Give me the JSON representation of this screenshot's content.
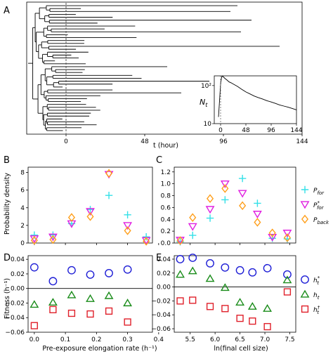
{
  "panels": {
    "A": "A",
    "B": "B",
    "C": "C",
    "D": "D",
    "E": "E"
  },
  "colors": {
    "p_for": "#33e0e8",
    "p_for_star": "#e020e0",
    "p_back": "#ff9f1c",
    "h_star": "#1f1fd6",
    "h_t": "#1a8c1a",
    "h_dagger": "#e0202a",
    "lineage": "#000000"
  },
  "chart_data": [
    {
      "id": "A",
      "type": "line",
      "description_of_marks": "lineage tree (horizontal branch lines), dashed vertical line at t = 0",
      "xlabel": "t (hour)",
      "x_ticks": [
        "0",
        "48",
        "96",
        "144"
      ],
      "xlim": [
        -24,
        144
      ],
      "inset": {
        "type": "line",
        "ylabel": "N_t",
        "y_scale": "log",
        "y_ticks": [
          "10",
          "10²"
        ],
        "x_ticks": [
          "0",
          "48",
          "96",
          "144"
        ],
        "xlim": [
          -12,
          144
        ],
        "ylim": [
          10,
          180
        ],
        "x": [
          -4,
          -2,
          0,
          2,
          4,
          6,
          8,
          12,
          16,
          20,
          24,
          32,
          40,
          48,
          56,
          64,
          72,
          80,
          88,
          96,
          104,
          112,
          120,
          128,
          136,
          144
        ],
        "y": [
          15,
          40,
          110,
          170,
          175,
          165,
          155,
          140,
          125,
          118,
          110,
          95,
          80,
          68,
          60,
          53,
          48,
          44,
          40,
          37,
          34,
          31,
          29,
          27,
          25,
          23
        ]
      }
    },
    {
      "id": "B",
      "type": "scatter",
      "ylabel": "Probability density",
      "x_ticks": [
        "0.0",
        "0.1",
        "0.2",
        "0.3",
        "0.4"
      ],
      "y_ticks": [
        "0",
        "2",
        "4",
        "6",
        "8"
      ],
      "xlim": [
        -0.02,
        0.38
      ],
      "ylim": [
        0,
        8.6
      ],
      "series": [
        {
          "key": "p_for",
          "marker": "plus",
          "x": [
            0.0,
            0.06,
            0.12,
            0.18,
            0.24,
            0.3,
            0.36
          ],
          "y": [
            0.9,
            0.9,
            2.2,
            3.8,
            5.4,
            3.2,
            0.7
          ]
        },
        {
          "key": "p_for_star",
          "marker": "triangle-down",
          "x": [
            0.0,
            0.06,
            0.12,
            0.18,
            0.24,
            0.3,
            0.36
          ],
          "y": [
            0.5,
            0.7,
            2.2,
            3.6,
            7.8,
            2.0,
            0.3
          ]
        },
        {
          "key": "p_back",
          "marker": "diamond",
          "x": [
            0.0,
            0.06,
            0.12,
            0.18,
            0.24,
            0.3,
            0.36
          ],
          "y": [
            0.3,
            0.4,
            2.9,
            3.0,
            7.9,
            1.4,
            0.2
          ]
        }
      ]
    },
    {
      "id": "C",
      "type": "scatter",
      "x_ticks": [
        "5.5",
        "6.0",
        "6.5",
        "7.0",
        "7.5"
      ],
      "y_ticks": [
        "0.0",
        "0.2",
        "0.4",
        "0.6",
        "0.8",
        "1.0",
        "1.2"
      ],
      "xlim": [
        5.18,
        7.62
      ],
      "ylim": [
        0,
        1.28
      ],
      "series": [
        {
          "key": "p_for",
          "marker": "plus",
          "x": [
            5.3,
            5.55,
            5.9,
            6.2,
            6.55,
            6.85,
            7.15,
            7.45
          ],
          "y": [
            0.02,
            0.13,
            0.42,
            0.73,
            1.09,
            0.67,
            0.08,
            0.07
          ]
        },
        {
          "key": "p_for_star",
          "marker": "triangle-down",
          "x": [
            5.3,
            5.55,
            5.9,
            6.2,
            6.55,
            6.85,
            7.15,
            7.45
          ],
          "y": [
            0.05,
            0.28,
            0.57,
            1.0,
            0.84,
            0.49,
            0.1,
            0.17
          ]
        },
        {
          "key": "p_back",
          "marker": "diamond",
          "x": [
            5.3,
            5.55,
            5.9,
            6.2,
            6.55,
            6.85,
            7.15,
            7.45
          ],
          "y": [
            0.04,
            0.43,
            0.75,
            0.92,
            0.63,
            0.35,
            0.17,
            0.09
          ]
        }
      ],
      "legend": [
        {
          "key": "p_for",
          "marker": "plus",
          "base": "P",
          "sub": "for",
          "sup": ""
        },
        {
          "key": "p_for_star",
          "marker": "triangle-down",
          "base": "P",
          "sub": "for",
          "sup": "*"
        },
        {
          "key": "p_back",
          "marker": "diamond",
          "base": "P",
          "sub": "back",
          "sup": ""
        }
      ]
    },
    {
      "id": "D",
      "type": "scatter",
      "xlabel": "Pre-exposure elongation rate (h⁻¹)",
      "ylabel": "Fitness (h⁻¹)",
      "x_ticks": [
        "0.0",
        "0.1",
        "0.2",
        "0.3",
        "0.4"
      ],
      "y_ticks": [
        "0.04",
        "0.02",
        "0.00",
        "−0.02",
        "−0.04",
        "−0.06"
      ],
      "xlim": [
        -0.02,
        0.38
      ],
      "ylim": [
        -0.06,
        0.045
      ],
      "series": [
        {
          "key": "h_star",
          "marker": "circle",
          "x": [
            0.0,
            0.06,
            0.12,
            0.18,
            0.24,
            0.3
          ],
          "y": [
            0.029,
            0.01,
            0.025,
            0.019,
            0.021,
            0.026
          ]
        },
        {
          "key": "h_t",
          "marker": "triangle-up",
          "x": [
            0.0,
            0.06,
            0.12,
            0.18,
            0.24,
            0.3
          ],
          "y": [
            -0.022,
            -0.019,
            -0.009,
            -0.014,
            -0.01,
            -0.02
          ]
        },
        {
          "key": "h_dagger",
          "marker": "square",
          "x": [
            0.0,
            0.06,
            0.12,
            0.18,
            0.24,
            0.3
          ],
          "y": [
            -0.051,
            -0.029,
            -0.034,
            -0.035,
            -0.031,
            -0.046
          ]
        }
      ]
    },
    {
      "id": "E",
      "type": "scatter",
      "xlabel": "ln(final cell size)",
      "x_ticks": [
        "5.5",
        "6.0",
        "6.5",
        "7.0",
        "7.5"
      ],
      "y_ticks": [
        "0.04",
        "0.02",
        "0.00",
        "−0.02",
        "−0.04",
        "−0.06"
      ],
      "xlim": [
        5.18,
        7.62
      ],
      "ylim": [
        -0.065,
        0.045
      ],
      "series": [
        {
          "key": "h_star",
          "marker": "circle",
          "x": [
            5.3,
            5.55,
            5.9,
            6.2,
            6.5,
            6.75,
            7.05,
            7.45
          ],
          "y": [
            0.04,
            0.042,
            0.034,
            0.028,
            0.024,
            0.021,
            0.027,
            0.018
          ]
        },
        {
          "key": "h_t",
          "marker": "triangle-up",
          "x": [
            5.3,
            5.55,
            5.9,
            6.2,
            6.5,
            6.75,
            7.05,
            7.45
          ],
          "y": [
            0.018,
            0.023,
            0.012,
            -0.001,
            -0.022,
            -0.028,
            -0.031,
            0.01
          ]
        },
        {
          "key": "h_dagger",
          "marker": "square",
          "x": [
            5.3,
            5.55,
            5.9,
            6.2,
            6.5,
            6.75,
            7.05,
            7.45
          ],
          "y": [
            -0.02,
            -0.019,
            -0.028,
            -0.031,
            -0.045,
            -0.049,
            -0.057,
            -0.007
          ]
        }
      ],
      "legend": [
        {
          "key": "h_star",
          "marker": "circle",
          "base": "h",
          "sub": "t",
          "sup": "*"
        },
        {
          "key": "h_t",
          "marker": "triangle-up",
          "base": "h",
          "sub": "t",
          "sup": ""
        },
        {
          "key": "h_dagger",
          "marker": "square",
          "base": "h",
          "sub": "t",
          "sup": "†"
        }
      ]
    }
  ]
}
